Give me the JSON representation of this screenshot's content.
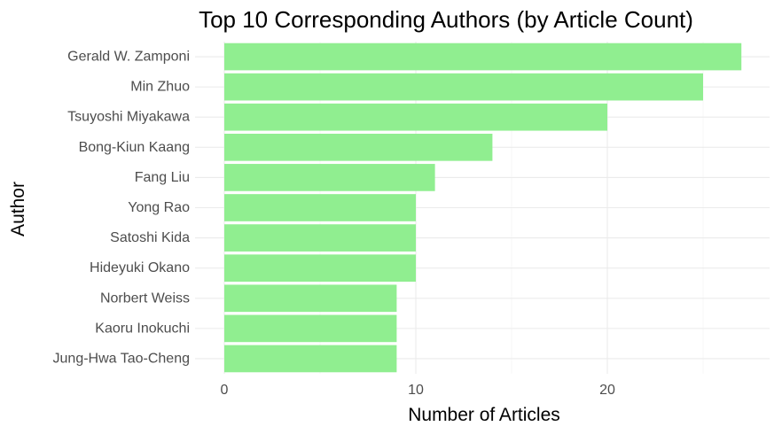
{
  "chart_data": {
    "type": "bar",
    "orientation": "horizontal",
    "title": "Top 10 Corresponding Authors (by Article Count)",
    "xlabel": "Number of Articles",
    "ylabel": "Author",
    "categories": [
      "Gerald W. Zamponi",
      "Min Zhuo",
      "Tsuyoshi Miyakawa",
      "Bong-Kiun Kaang",
      "Fang Liu",
      "Yong Rao",
      "Satoshi Kida",
      "Hideyuki Okano",
      "Norbert Weiss",
      "Kaoru Inokuchi",
      "Jung-Hwa Tao-Cheng"
    ],
    "values": [
      27,
      25,
      20,
      14,
      11,
      10,
      10,
      10,
      9,
      9,
      9
    ],
    "xlim": [
      0,
      27
    ],
    "xticks": [
      0,
      10,
      20
    ],
    "bar_color": "#90EE90",
    "grid": true,
    "legend": "none"
  }
}
